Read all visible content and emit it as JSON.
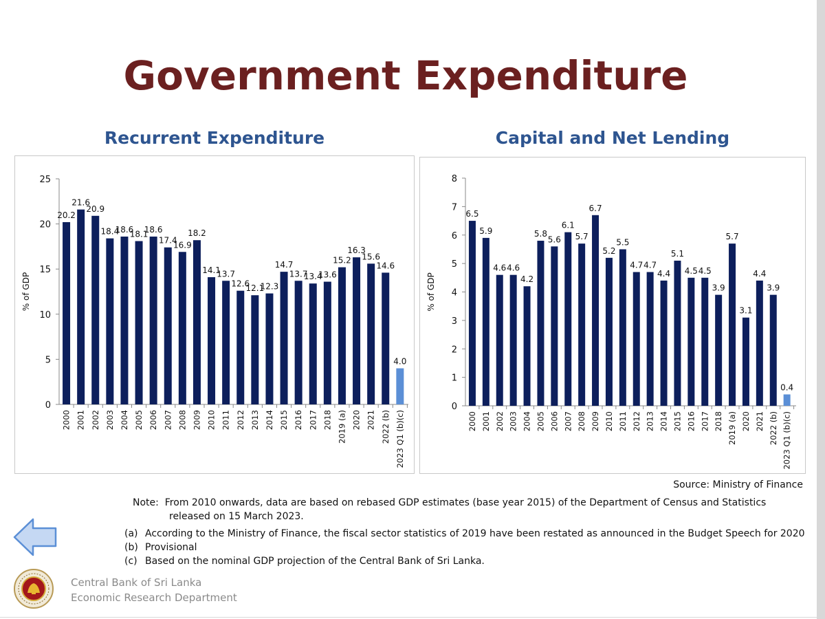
{
  "title": "Government Expenditure",
  "source": "Source: Ministry of Finance",
  "note": {
    "label": "Note:",
    "line1": "From 2010 onwards, data are based on rebased GDP estimates (base year 2015) of the Department of Census and Statistics",
    "line2": "released on 15 March 2023."
  },
  "footnotes": [
    {
      "key": "(a)",
      "text": "According to the Ministry of Finance, the fiscal sector statistics of 2019 have been restated as announced in the Budget Speech for 2020"
    },
    {
      "key": "(b)",
      "text": "Provisional"
    },
    {
      "key": "(c)",
      "text": "Based on the nominal GDP projection of the Central Bank of Sri Lanka."
    }
  ],
  "organization": {
    "line1": "Central Bank of Sri Lanka",
    "line2": "Economic Research Department"
  },
  "colors": {
    "title": "#6b2020",
    "chart_title": "#2e5590",
    "bar": "#0d1f5c",
    "bar_highlight": "#5b8fd6"
  },
  "icons": {
    "back": "left-arrow-icon",
    "logo": "central-bank-emblem"
  },
  "chart_data": [
    {
      "type": "bar",
      "title": "Recurrent Expenditure",
      "ylabel": "% of GDP",
      "ylim": [
        0,
        25
      ],
      "yticks": [
        0,
        5,
        10,
        15,
        20,
        25
      ],
      "categories": [
        "2000",
        "2001",
        "2002",
        "2003",
        "2004",
        "2005",
        "2006",
        "2007",
        "2008",
        "2009",
        "2010",
        "2011",
        "2012",
        "2013",
        "2014",
        "2015",
        "2016",
        "2017",
        "2018",
        "2019 (a)",
        "2020",
        "2021",
        "2022 (b)",
        "2023 Q1 (b)(c)"
      ],
      "values": [
        20.2,
        21.6,
        20.9,
        18.4,
        18.6,
        18.1,
        18.6,
        17.4,
        16.9,
        18.2,
        14.1,
        13.7,
        12.6,
        12.1,
        12.3,
        14.7,
        13.7,
        13.4,
        13.6,
        15.2,
        16.3,
        15.6,
        14.6,
        4.0
      ],
      "labels": [
        "20.2",
        "21.6",
        "20.9",
        "18.4",
        "18.6",
        "18.1",
        "18.6",
        "17.4",
        "16.9",
        "18.2",
        "14.1",
        "13.7",
        "12.6",
        "12.1",
        "12.3",
        "14.7",
        "13.7",
        "13.4",
        "13.6",
        "15.2",
        "16.3",
        "15.6",
        "14.6",
        "4.0"
      ],
      "highlight_index": 23
    },
    {
      "type": "bar",
      "title": "Capital and Net Lending",
      "ylabel": "% of GDP",
      "ylim": [
        0,
        8
      ],
      "yticks": [
        0,
        1,
        2,
        3,
        4,
        5,
        6,
        7,
        8
      ],
      "categories": [
        "2000",
        "2001",
        "2002",
        "2003",
        "2004",
        "2005",
        "2006",
        "2007",
        "2008",
        "2009",
        "2010",
        "2011",
        "2012",
        "2013",
        "2014",
        "2015",
        "2016",
        "2017",
        "2018",
        "2019 (a)",
        "2020",
        "2021",
        "2022 (b)",
        "2023 Q1 (b)(c)"
      ],
      "values": [
        6.5,
        5.9,
        4.6,
        4.6,
        4.2,
        5.8,
        5.6,
        6.1,
        5.7,
        6.7,
        5.2,
        5.5,
        4.7,
        4.7,
        4.4,
        5.1,
        4.5,
        4.5,
        3.9,
        5.7,
        3.1,
        4.4,
        3.9,
        0.4
      ],
      "labels": [
        "6.5",
        "5.9",
        "4.6",
        "4.6",
        "4.2",
        "5.8",
        "5.6",
        "6.1",
        "5.7",
        "6.7",
        "5.2",
        "5.5",
        "4.7",
        "4.7",
        "4.4",
        "5.1",
        "4.5",
        "4.5",
        "3.9",
        "5.7",
        "3.1",
        "4.4",
        "3.9",
        "0.4"
      ],
      "highlight_index": 23
    }
  ]
}
